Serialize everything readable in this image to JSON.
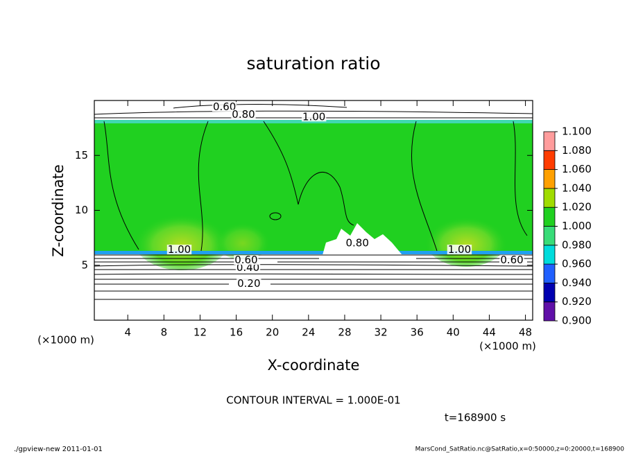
{
  "chart_data": {
    "type": "contour",
    "title": "saturation ratio",
    "x_label": "X-coordinate",
    "y_label": "Z-coordinate",
    "x_unit": "(×1000 m)",
    "x_unit_right": "(×1000 m)",
    "xlim": [
      0.3,
      48.8
    ],
    "ylim": [
      0,
      20
    ],
    "xticks": [
      4,
      8,
      12,
      16,
      20,
      24,
      28,
      32,
      36,
      40,
      44,
      48
    ],
    "yticks": [
      5,
      10,
      15
    ],
    "colorbar": {
      "ticks": [
        {
          "value": 0.9,
          "label": "0.900"
        },
        {
          "value": 0.92,
          "label": "0.920"
        },
        {
          "value": 0.94,
          "label": "0.940"
        },
        {
          "value": 0.96,
          "label": "0.960"
        },
        {
          "value": 0.98,
          "label": "0.980"
        },
        {
          "value": 1.0,
          "label": "1.000"
        },
        {
          "value": 1.02,
          "label": "1.020"
        },
        {
          "value": 1.04,
          "label": "1.040"
        },
        {
          "value": 1.06,
          "label": "1.060"
        },
        {
          "value": 1.08,
          "label": "1.080"
        },
        {
          "value": 1.1,
          "label": "1.100"
        }
      ],
      "colors": [
        "#6010a8",
        "#0000b0",
        "#2060ff",
        "#00dcdc",
        "#38dc78",
        "#20d020",
        "#a0dc00",
        "#ffa000",
        "#ff3c00",
        "#ff9c9c"
      ]
    },
    "contour_labels": [
      {
        "text": "0.20",
        "x": 17.4,
        "z": 3.3
      },
      {
        "text": "0.40",
        "x": 17.3,
        "z": 4.75
      },
      {
        "text": "0.60",
        "x": 17.1,
        "z": 5.45
      },
      {
        "text": "1.00",
        "x": 9.7,
        "z": 6.4
      },
      {
        "text": "1.00",
        "x": 40.7,
        "z": 6.4
      },
      {
        "text": "0.60",
        "x": 46.5,
        "z": 5.45
      },
      {
        "text": "0.60",
        "x": 14.7,
        "z": 19.4
      },
      {
        "text": "0.80",
        "x": 16.8,
        "z": 18.7
      },
      {
        "text": "1.00",
        "x": 24.6,
        "z": 18.5
      },
      {
        "text": "0.80",
        "x": 29.4,
        "z": 7.0
      }
    ],
    "contour_interval": "CONTOUR INTERVAL = 1.000E-01",
    "time_label": "t=168900 s",
    "footer_left": "./gpview-new   2011-01-01",
    "footer_right": "MarsCond_SatRatio.nc@SatRatio,x=0:50000,z=0:20000,t=168900"
  }
}
